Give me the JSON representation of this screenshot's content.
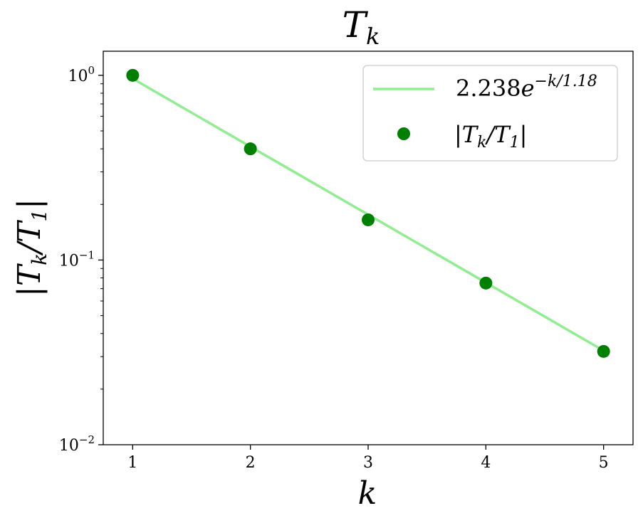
{
  "chart_data": {
    "type": "scatter",
    "title": {
      "base": "T",
      "sub": "k"
    },
    "xlabel": "k",
    "ylabel": {
      "p1": "|T",
      "s1": "k",
      "p2": "/T",
      "s2": "1",
      "p3": "|"
    },
    "xlim": [
      0.75,
      5.25
    ],
    "ylim": [
      0.01,
      1.35
    ],
    "yscale": "log",
    "x_ticks": [
      1,
      2,
      3,
      4,
      5
    ],
    "x_tick_labels": [
      "1",
      "2",
      "3",
      "4",
      "5"
    ],
    "y_ticks": [
      {
        "value": 1,
        "base": "10",
        "exp": "0"
      },
      {
        "value": 0.1,
        "base": "10",
        "exp": "−1"
      },
      {
        "value": 0.01,
        "base": "10",
        "exp": "−2"
      }
    ],
    "grid": false,
    "legend_position": "upper-right",
    "series": [
      {
        "kind": "line",
        "color": "#90ee90",
        "amplitude": 2.238,
        "decay": 1.18,
        "x": [
          1,
          5
        ],
        "legend": {
          "coef": "2.238",
          "base": "e",
          "exp": "−k/1.18"
        }
      },
      {
        "kind": "scatter",
        "color": "#008000",
        "x": [
          1,
          2,
          3,
          4,
          5
        ],
        "y": [
          1.0,
          0.4,
          0.165,
          0.075,
          0.032
        ],
        "legend": {
          "p1": "|T",
          "s1": "k",
          "p2": "/T",
          "s2": "1",
          "p3": "|"
        }
      }
    ]
  }
}
